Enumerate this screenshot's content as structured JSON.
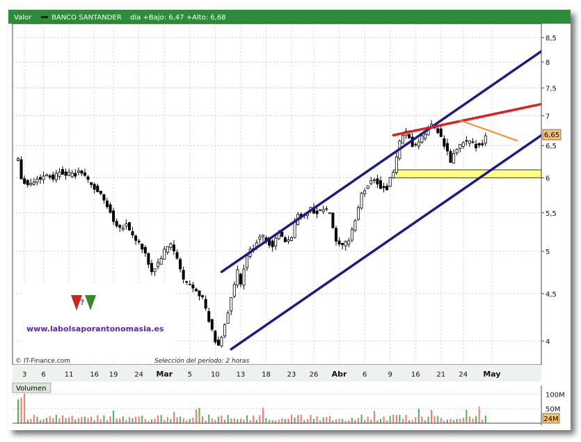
{
  "header": {
    "label_valor": "Valor",
    "security": "BANCO SANTANDER",
    "range_text": "día +Bajo: 6,47 +Alto: 6,68"
  },
  "watermark": {
    "url": "www.labolsaporantonomasia.es"
  },
  "footer": {
    "credit": "© IT-Finance.com",
    "selection": "Selección del período: 2 horas"
  },
  "volume_panel": {
    "title": "Volumen"
  },
  "colors": {
    "header_bg": "#2e8b3a",
    "channel": "#1a1a8c",
    "resistance": "#e02020",
    "short_trend": "#ff8c1a",
    "support_band": "#ffff80",
    "last_price_bg": "#f5c26b",
    "volume_bar": "#ff7070",
    "volume_bar_alt": "#46b84a"
  },
  "chart_data": {
    "type": "candlestick",
    "price_axis": {
      "ticks": [
        {
          "value": 4,
          "label": "4"
        },
        {
          "value": 4.5,
          "label": "4,5"
        },
        {
          "value": 5,
          "label": "5"
        },
        {
          "value": 5.5,
          "label": "5,5"
        },
        {
          "value": 6,
          "label": "6"
        },
        {
          "value": 6.5,
          "label": "6,5"
        },
        {
          "value": 7,
          "label": "7"
        },
        {
          "value": 7.5,
          "label": "7,5"
        },
        {
          "value": 8,
          "label": "8"
        },
        {
          "value": 8.5,
          "label": "8,5"
        }
      ],
      "scale": "log",
      "last_price_label": "6,65",
      "last_price": 6.65
    },
    "date_axis": [
      {
        "label": "3",
        "idx": 2
      },
      {
        "label": "6",
        "idx": 8
      },
      {
        "label": "11",
        "idx": 16
      },
      {
        "label": "16",
        "idx": 24
      },
      {
        "label": "19",
        "idx": 30
      },
      {
        "label": "24",
        "idx": 38
      },
      {
        "label": "Mar",
        "idx": 46,
        "month": true
      },
      {
        "label": "5",
        "idx": 54
      },
      {
        "label": "10",
        "idx": 62
      },
      {
        "label": "13",
        "idx": 70
      },
      {
        "label": "18",
        "idx": 78
      },
      {
        "label": "23",
        "idx": 86
      },
      {
        "label": "26",
        "idx": 93
      },
      {
        "label": "Abr",
        "idx": 101,
        "month": true
      },
      {
        "label": "6",
        "idx": 109
      },
      {
        "label": "9",
        "idx": 117
      },
      {
        "label": "16",
        "idx": 125
      },
      {
        "label": "21",
        "idx": 133
      },
      {
        "label": "24",
        "idx": 140
      },
      {
        "label": "May",
        "idx": 149,
        "month": true
      }
    ],
    "close_path": [
      [
        0,
        6.3
      ],
      [
        1,
        6.0
      ],
      [
        3,
        5.9
      ],
      [
        5,
        5.95
      ],
      [
        7,
        6.0
      ],
      [
        9,
        6.05
      ],
      [
        11,
        6.0
      ],
      [
        13,
        6.1
      ],
      [
        16,
        6.05
      ],
      [
        18,
        6.05
      ],
      [
        20,
        6.1
      ],
      [
        22,
        5.95
      ],
      [
        24,
        5.85
      ],
      [
        26,
        5.75
      ],
      [
        28,
        5.6
      ],
      [
        30,
        5.4
      ],
      [
        32,
        5.3
      ],
      [
        34,
        5.35
      ],
      [
        36,
        5.2
      ],
      [
        38,
        5.1
      ],
      [
        40,
        4.95
      ],
      [
        42,
        4.75
      ],
      [
        44,
        4.85
      ],
      [
        46,
        5.0
      ],
      [
        48,
        5.1
      ],
      [
        50,
        4.9
      ],
      [
        52,
        4.65
      ],
      [
        54,
        4.6
      ],
      [
        56,
        4.55
      ],
      [
        58,
        4.45
      ],
      [
        60,
        4.2
      ],
      [
        62,
        4.0
      ],
      [
        63,
        3.95
      ],
      [
        64,
        4.05
      ],
      [
        66,
        4.3
      ],
      [
        68,
        4.6
      ],
      [
        69,
        4.75
      ],
      [
        70,
        4.6
      ],
      [
        72,
        4.95
      ],
      [
        74,
        5.05
      ],
      [
        76,
        5.2
      ],
      [
        78,
        5.15
      ],
      [
        80,
        5.05
      ],
      [
        82,
        5.25
      ],
      [
        84,
        5.1
      ],
      [
        86,
        5.2
      ],
      [
        88,
        5.5
      ],
      [
        90,
        5.45
      ],
      [
        92,
        5.55
      ],
      [
        94,
        5.5
      ],
      [
        96,
        5.55
      ],
      [
        98,
        5.5
      ],
      [
        100,
        5.1
      ],
      [
        102,
        5.05
      ],
      [
        104,
        5.15
      ],
      [
        106,
        5.4
      ],
      [
        108,
        5.75
      ],
      [
        110,
        5.9
      ],
      [
        112,
        6.0
      ],
      [
        114,
        5.85
      ],
      [
        116,
        5.85
      ],
      [
        118,
        6.1
      ],
      [
        120,
        6.55
      ],
      [
        122,
        6.7
      ],
      [
        124,
        6.5
      ],
      [
        126,
        6.55
      ],
      [
        128,
        6.7
      ],
      [
        130,
        6.85
      ],
      [
        132,
        6.75
      ],
      [
        134,
        6.5
      ],
      [
        136,
        6.25
      ],
      [
        138,
        6.45
      ],
      [
        140,
        6.55
      ],
      [
        142,
        6.55
      ],
      [
        144,
        6.5
      ],
      [
        146,
        6.55
      ],
      [
        147,
        6.65
      ]
    ],
    "trendlines": [
      {
        "name": "channel-top",
        "from": [
          64,
          4.75
        ],
        "to": [
          174,
          8.65
        ],
        "color": "#1a1a8c"
      },
      {
        "name": "channel-bottom",
        "from": [
          67,
          3.92
        ],
        "to": [
          174,
          7.02
        ],
        "color": "#1a1a8c"
      },
      {
        "name": "resistance",
        "from": [
          118,
          6.67
        ],
        "to": [
          174,
          7.32
        ],
        "color": "#e02020"
      },
      {
        "name": "short-down",
        "from": [
          139,
          6.92
        ],
        "to": [
          157,
          6.58
        ],
        "color": "#ff8c1a"
      }
    ],
    "support_zone": {
      "from_idx": 118,
      "low": 6.0,
      "high": 6.12
    },
    "volume_axis": {
      "ticks": [
        {
          "value": 100,
          "label": "100M"
        },
        {
          "value": 50,
          "label": "50M"
        }
      ],
      "max": 125,
      "last_volume_label": "24M"
    }
  }
}
